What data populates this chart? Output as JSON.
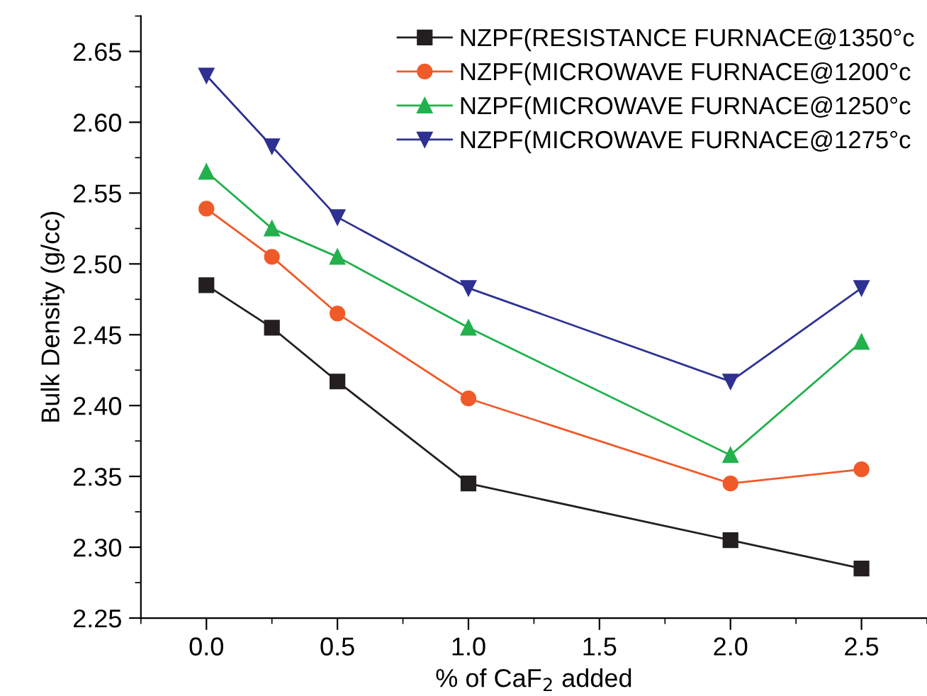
{
  "chart_data": {
    "type": "line",
    "xlabel": "% of CaF$_{2}$ added",
    "ylabel": "Bulk Density (g/cc)",
    "x": [
      0.0,
      0.25,
      0.5,
      1.0,
      2.0,
      2.5
    ],
    "series": [
      {
        "name": "NZPF(RESISTANCE FURNACE@1350°c",
        "color": "#231f20",
        "marker": "square",
        "values": [
          2.485,
          2.455,
          2.417,
          2.345,
          2.305,
          2.285
        ]
      },
      {
        "name": "NZPF(MICROWAVE FURNACE@1200°c",
        "color": "#f05a28",
        "marker": "circle",
        "values": [
          2.539,
          2.505,
          2.465,
          2.405,
          2.345,
          2.355
        ]
      },
      {
        "name": "NZPF(MICROWAVE FURNACE@1250°c",
        "color": "#22b14c",
        "marker": "triangle",
        "values": [
          2.565,
          2.525,
          2.505,
          2.455,
          2.365,
          2.445
        ]
      },
      {
        "name": "NZPF(MICROWAVE FURNACE@1275°c",
        "color": "#2e3192",
        "marker": "triangle_down",
        "values": [
          2.633,
          2.583,
          2.533,
          2.483,
          2.417,
          2.483
        ]
      }
    ],
    "xlim": [
      -0.25,
      2.75
    ],
    "xticks": [
      {
        "value": 0,
        "label": "0.0"
      },
      {
        "value": 0.5,
        "label": "0.5"
      },
      {
        "value": 1,
        "label": "1.0"
      },
      {
        "value": 1.5,
        "label": "1.5"
      },
      {
        "value": 2,
        "label": "2.0"
      },
      {
        "value": 2.5,
        "label": "2.5"
      }
    ],
    "ylim": [
      2.25,
      2.675
    ],
    "yticks": [
      {
        "value": 2.25,
        "label": "2.25"
      },
      {
        "value": 2.3,
        "label": "2.30"
      },
      {
        "value": 2.35,
        "label": "2.35"
      },
      {
        "value": 2.4,
        "label": "2.40"
      },
      {
        "value": 2.45,
        "label": "2.45"
      },
      {
        "value": 2.5,
        "label": "2.50"
      },
      {
        "value": 2.55,
        "label": "2.55"
      },
      {
        "value": 2.6,
        "label": "2.60"
      },
      {
        "value": 2.65,
        "label": "2.65"
      }
    ],
    "grid": false,
    "legend": "top right",
    "line_style": "solid"
  }
}
